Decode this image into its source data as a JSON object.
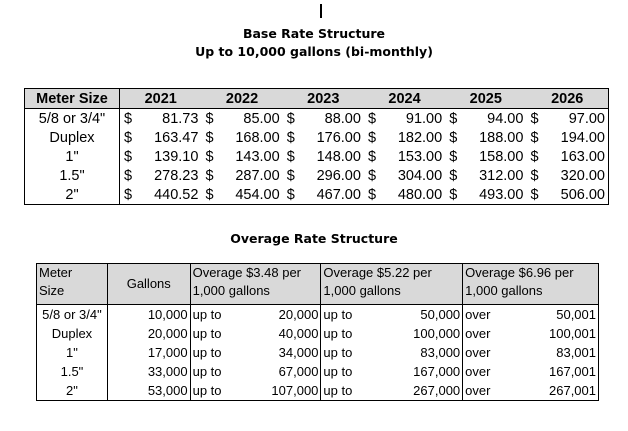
{
  "base": {
    "title": "Base Rate Structure",
    "subtitle": "Up to 10,000 gallons (bi-monthly)",
    "header": {
      "meter": "Meter Size",
      "years": [
        "2021",
        "2022",
        "2023",
        "2024",
        "2025",
        "2026"
      ]
    },
    "currency_symbol": "$",
    "rows": [
      {
        "meter": "5/8 or 3/4\"",
        "values": [
          "81.73",
          "85.00",
          "88.00",
          "91.00",
          "94.00",
          "97.00"
        ]
      },
      {
        "meter": "Duplex",
        "values": [
          "163.47",
          "168.00",
          "176.00",
          "182.00",
          "188.00",
          "194.00"
        ]
      },
      {
        "meter": "1\"",
        "values": [
          "139.10",
          "143.00",
          "148.00",
          "153.00",
          "158.00",
          "163.00"
        ]
      },
      {
        "meter": "1.5\"",
        "values": [
          "278.23",
          "287.00",
          "296.00",
          "304.00",
          "312.00",
          "320.00"
        ]
      },
      {
        "meter": "2\"",
        "values": [
          "440.52",
          "454.00",
          "467.00",
          "480.00",
          "493.00",
          "506.00"
        ]
      }
    ]
  },
  "overage": {
    "title": "Overage Rate Structure",
    "header": {
      "meter_line1": "Meter",
      "meter_line2": "Size",
      "gallons": "Gallons",
      "tier1_line1": "Overage $3.48 per",
      "tier2_line1": "Overage $5.22 per",
      "tier3_line1": "Overage $6.96 per",
      "tier_line2": "1,000 gallons"
    },
    "rows": [
      {
        "meter": "5/8 or 3/4\"",
        "gallons": "10,000",
        "t1_word": "up to",
        "t1": "20,000",
        "t2_word": "up to",
        "t2": "50,000",
        "t3_word": "over",
        "t3": "50,001"
      },
      {
        "meter": "Duplex",
        "gallons": "20,000",
        "t1_word": "up to",
        "t1": "40,000",
        "t2_word": "up to",
        "t2": "100,000",
        "t3_word": "over",
        "t3": "100,001"
      },
      {
        "meter": "1\"",
        "gallons": "17,000",
        "t1_word": "up to",
        "t1": "34,000",
        "t2_word": "up to",
        "t2": "83,000",
        "t3_word": "over",
        "t3": "83,001"
      },
      {
        "meter": "1.5\"",
        "gallons": "33,000",
        "t1_word": "up to",
        "t1": "67,000",
        "t2_word": "up to",
        "t2": "167,000",
        "t3_word": "over",
        "t3": "167,001"
      },
      {
        "meter": "2\"",
        "gallons": "53,000",
        "t1_word": "up to",
        "t1": "107,000",
        "t2_word": "up to",
        "t2": "267,000",
        "t3_word": "over",
        "t3": "267,001"
      }
    ]
  }
}
